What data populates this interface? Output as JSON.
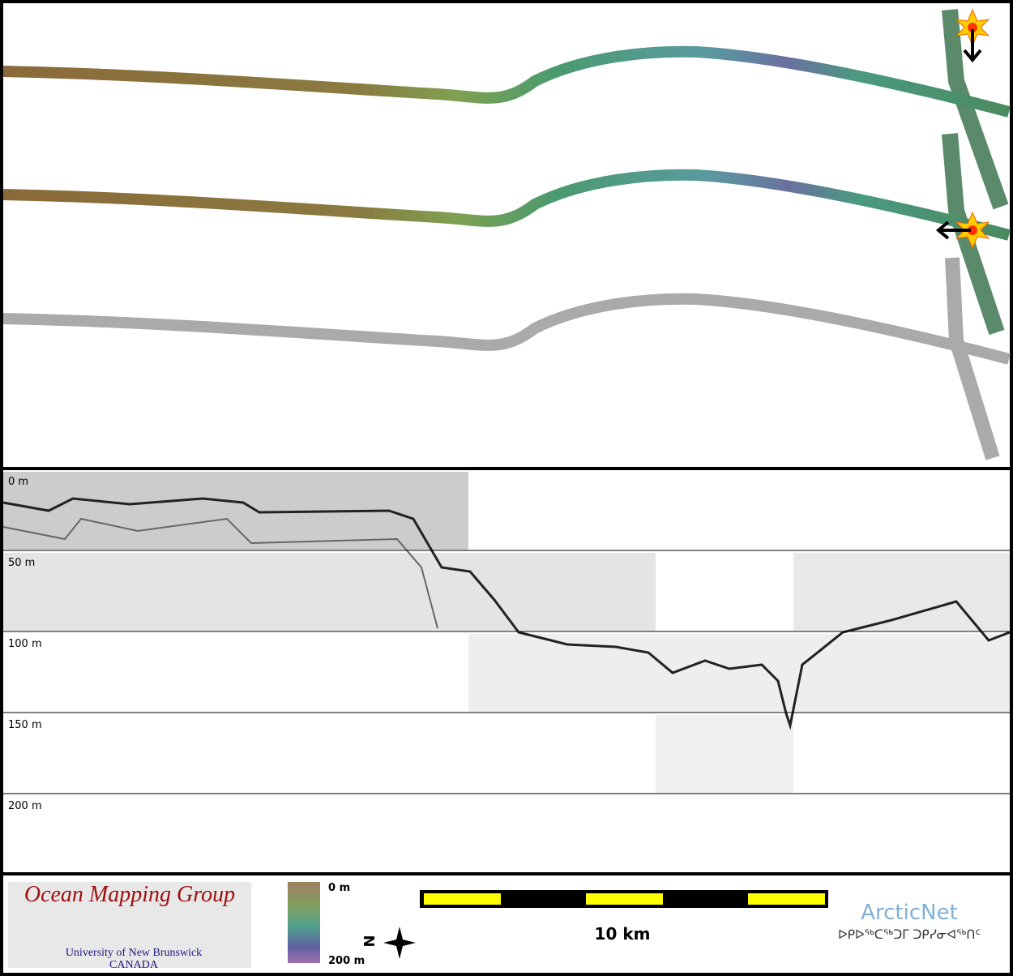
{
  "depth_panel": {
    "labels": [
      "0 m",
      "50 m",
      "100 m",
      "150 m",
      "200 m"
    ]
  },
  "legend": {
    "logo_title": "Ocean Mapping Group",
    "logo_line1": "University of New Brunswick",
    "logo_line2": "CANADA",
    "colorbar_top": "0 m",
    "colorbar_bottom": "200 m",
    "north_label": "N",
    "scale_label": "10 km",
    "partner_name": "ArcticNet",
    "partner_subtitle": "ᐅᑭᐅᖅᑕᖅᑐᒥ ᑐᑭᓯᓂᐊᖅᑎᑦ"
  }
}
